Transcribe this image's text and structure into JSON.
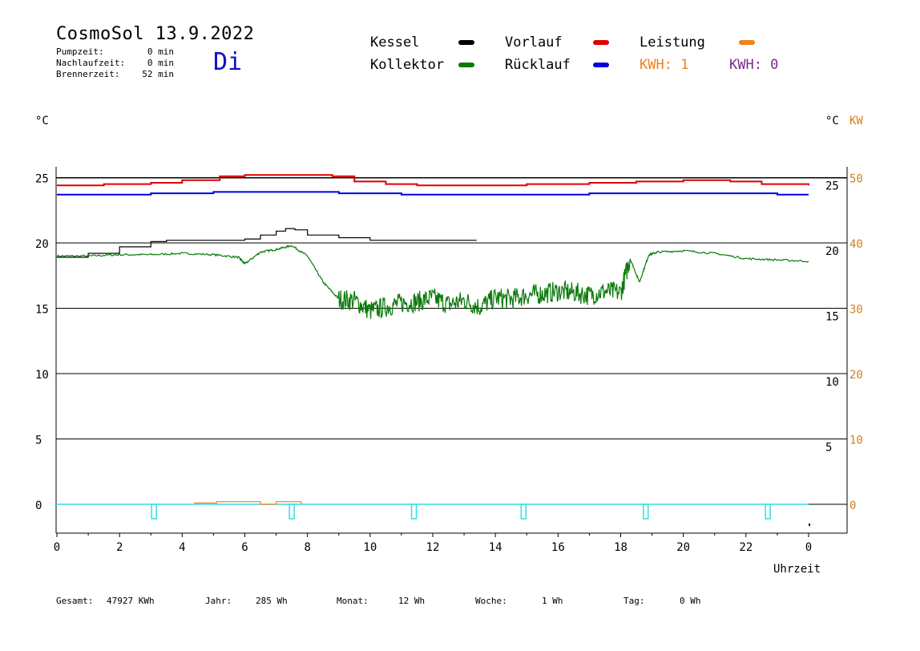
{
  "header": {
    "title": "CosmoSol 13.9.2022",
    "day": "Di",
    "stats": [
      {
        "label": "Pumpzeit:",
        "value": "0 min"
      },
      {
        "label": "Nachlaufzeit:",
        "value": "0 min"
      },
      {
        "label": "Brennerzeit:",
        "value": "52 min"
      }
    ]
  },
  "legend": {
    "kessel": "Kessel",
    "kollektor": "Kollektor",
    "vorlauf": "Vorlauf",
    "ruecklauf": "Rücklauf",
    "leistung": "Leistung",
    "kwh1": "KWH: 1",
    "kwh2": "KWH: 0"
  },
  "colors": {
    "kessel": "#000000",
    "kollektor": "#0a7a0a",
    "vorlauf": "#e00000",
    "ruecklauf": "#0000e0",
    "leistung": "#f08020",
    "kwh2": "#7a2a8a",
    "pump": "#30e0e0"
  },
  "chart_data": {
    "type": "line",
    "title": "CosmoSol 13.9.2022",
    "xlabel": "Uhrzeit",
    "ylabel_left": "°C",
    "ylabel_right": "°C",
    "ylabel_right2": "KW",
    "xlim": [
      0,
      24
    ],
    "ylim": [
      -2,
      25
    ],
    "grid": "horizontal",
    "x_ticks": [
      "0",
      "2",
      "4",
      "6",
      "8",
      "10",
      "12",
      "14",
      "16",
      "18",
      "20",
      "22",
      "0"
    ],
    "y_ticks_left": [
      "25",
      "20",
      "15",
      "10",
      "5",
      "0"
    ],
    "y_ticks_right": [
      "25",
      "20",
      "15",
      "10",
      "5"
    ],
    "y_ticks_kw": [
      "50",
      "40",
      "30",
      "20",
      "10",
      "0"
    ],
    "series": [
      {
        "name": "Vorlauf",
        "key": "vorlauf",
        "x": [
          0,
          1.5,
          3,
          4,
          5.2,
          6,
          7,
          8.8,
          9.5,
          10.5,
          11.5,
          13,
          15,
          17,
          18.5,
          20,
          21.5,
          22.5,
          24
        ],
        "y": [
          24.4,
          24.5,
          24.6,
          24.8,
          25.1,
          25.2,
          25.2,
          25.1,
          24.7,
          24.5,
          24.4,
          24.4,
          24.5,
          24.6,
          24.7,
          24.8,
          24.7,
          24.5,
          24.4
        ]
      },
      {
        "name": "Rücklauf",
        "key": "ruecklauf",
        "x": [
          0,
          3,
          5,
          7,
          9,
          11,
          13,
          15,
          17,
          19,
          21,
          23,
          24
        ],
        "y": [
          23.7,
          23.8,
          23.9,
          23.9,
          23.8,
          23.7,
          23.7,
          23.7,
          23.8,
          23.8,
          23.8,
          23.7,
          23.7
        ]
      },
      {
        "name": "Kessel",
        "key": "kessel",
        "x": [
          0,
          1,
          2,
          3,
          3.5,
          5,
          6,
          6.5,
          7,
          7.3,
          7.6,
          8,
          9,
          10,
          11,
          12,
          13,
          13.4
        ],
        "y": [
          18.9,
          19.2,
          19.7,
          20.1,
          20.2,
          20.2,
          20.3,
          20.6,
          20.9,
          21.1,
          21.0,
          20.6,
          20.4,
          20.2,
          20.2,
          20.2,
          20.2,
          20.2
        ]
      },
      {
        "name": "Kollektor",
        "key": "kollektor",
        "x": [
          0,
          1,
          2,
          3,
          4,
          5,
          5.8,
          6,
          6.5,
          7,
          7.5,
          8,
          8.5,
          9,
          9.5,
          10,
          10.5,
          11,
          11.5,
          12,
          12.5,
          13,
          13.5,
          14,
          14.5,
          15,
          15.5,
          16,
          16.5,
          17,
          17.5,
          18,
          18.3,
          18.6,
          18.9,
          19.2,
          20,
          21,
          22,
          23,
          24
        ],
        "y": [
          19.0,
          19.0,
          19.1,
          19.1,
          19.2,
          19.1,
          18.9,
          18.4,
          19.3,
          19.5,
          19.8,
          19.0,
          17.0,
          15.7,
          15.6,
          14.8,
          15.1,
          15.4,
          15.5,
          15.8,
          15.3,
          15.6,
          15.1,
          15.8,
          15.7,
          16.0,
          16.1,
          16.3,
          16.2,
          16.0,
          16.3,
          16.2,
          18.8,
          17.0,
          19.1,
          19.3,
          19.4,
          19.2,
          18.8,
          18.7,
          18.6
        ]
      },
      {
        "name": "Leistung",
        "key": "leistung",
        "x": [
          4.4,
          4.4,
          5.1,
          5.1,
          6.5,
          6.5,
          7.0,
          7.0,
          7.8,
          7.8
        ],
        "y": [
          0,
          0.1,
          0.1,
          0.2,
          0.2,
          0,
          0,
          0.2,
          0.2,
          0
        ]
      }
    ],
    "pump_markers": [
      3.1,
      7.5,
      11.4,
      14.9,
      18.8,
      22.7
    ]
  },
  "footer": [
    {
      "label": "Gesamt:",
      "value": "47927 KWh"
    },
    {
      "label": "Jahr:",
      "value": "285 Wh"
    },
    {
      "label": "Monat:",
      "value": "12 Wh"
    },
    {
      "label": "Woche:",
      "value": "1 Wh"
    },
    {
      "label": "Tag:",
      "value": "0 Wh"
    }
  ]
}
